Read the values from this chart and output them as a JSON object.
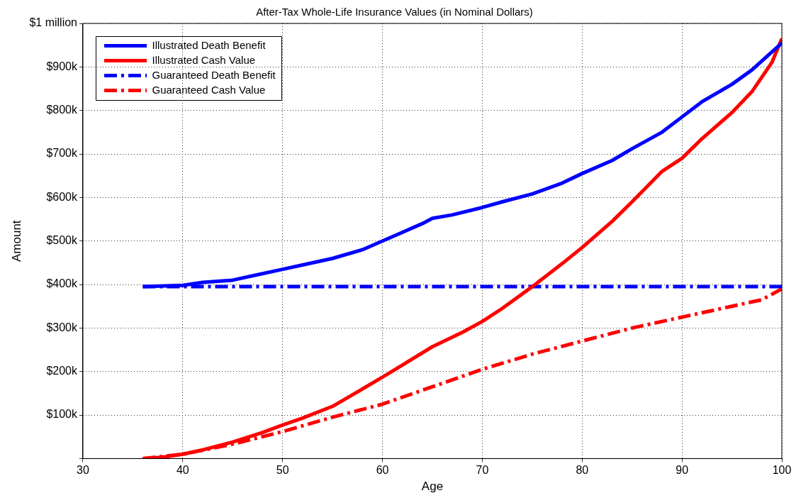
{
  "chart_data": {
    "type": "line",
    "title": "After-Tax Whole-Life Insurance Values (in Nominal Dollars)",
    "xlabel": "Age",
    "ylabel": "Amount",
    "xlim": [
      30,
      100
    ],
    "xticks": [
      30,
      40,
      50,
      60,
      70,
      80,
      90,
      100
    ],
    "ylim": [
      0,
      1000000
    ],
    "yticks": [
      {
        "value": 0,
        "label": null
      },
      {
        "value": 100000,
        "label": "$100k"
      },
      {
        "value": 200000,
        "label": "$200k"
      },
      {
        "value": 300000,
        "label": "$300k"
      },
      {
        "value": 400000,
        "label": "$400k"
      },
      {
        "value": 500000,
        "label": "$500k"
      },
      {
        "value": 600000,
        "label": "$600k"
      },
      {
        "value": 700000,
        "label": "$700k"
      },
      {
        "value": 800000,
        "label": "$800k"
      },
      {
        "value": 900000,
        "label": "$900k"
      },
      {
        "value": 1000000,
        "label": "$1 million"
      }
    ],
    "grid": true,
    "legend": "top left",
    "marker": "none",
    "series": [
      {
        "name": "Illustrated Death Benefit",
        "color": "#0000ff",
        "line_style": "solid",
        "x": [
          36,
          40,
          42,
          45,
          47,
          50,
          52,
          55,
          58,
          60,
          62,
          64,
          65,
          67,
          70,
          72,
          75,
          78,
          80,
          83,
          85,
          88,
          90,
          92,
          95,
          97,
          100
        ],
        "values": [
          395000,
          398000,
          405000,
          410000,
          420000,
          435000,
          445000,
          460000,
          480000,
          500000,
          520000,
          540000,
          552000,
          560000,
          577000,
          590000,
          608000,
          633000,
          655000,
          685000,
          712000,
          750000,
          785000,
          820000,
          860000,
          893000,
          955000
        ]
      },
      {
        "name": "Illustrated Cash Value",
        "color": "#ff0000",
        "line_style": "solid",
        "x": [
          36,
          38,
          40,
          42,
          45,
          48,
          50,
          52,
          55,
          58,
          60,
          62,
          65,
          68,
          70,
          72,
          75,
          78,
          80,
          83,
          85,
          88,
          90,
          92,
          95,
          97,
          99,
          100
        ],
        "values": [
          0,
          3000,
          10000,
          20000,
          38000,
          60000,
          77000,
          93000,
          120000,
          160000,
          187000,
          215000,
          257000,
          290000,
          315000,
          345000,
          395000,
          448000,
          485000,
          545000,
          590000,
          660000,
          690000,
          735000,
          795000,
          843000,
          910000,
          965000
        ]
      },
      {
        "name": "Guaranteed Death Benefit",
        "color": "#0000ff",
        "line_style": "dashed",
        "x": [
          36,
          100
        ],
        "values": [
          395000,
          395000
        ]
      },
      {
        "name": "Guaranteed Cash Value",
        "color": "#ff0000",
        "line_style": "dashed",
        "x": [
          36,
          40,
          45,
          50,
          55,
          60,
          65,
          70,
          75,
          80,
          85,
          90,
          95,
          98,
          100
        ],
        "values": [
          0,
          10000,
          33000,
          62000,
          95000,
          125000,
          165000,
          205000,
          240000,
          270000,
          300000,
          325000,
          350000,
          365000,
          390000
        ]
      }
    ]
  }
}
